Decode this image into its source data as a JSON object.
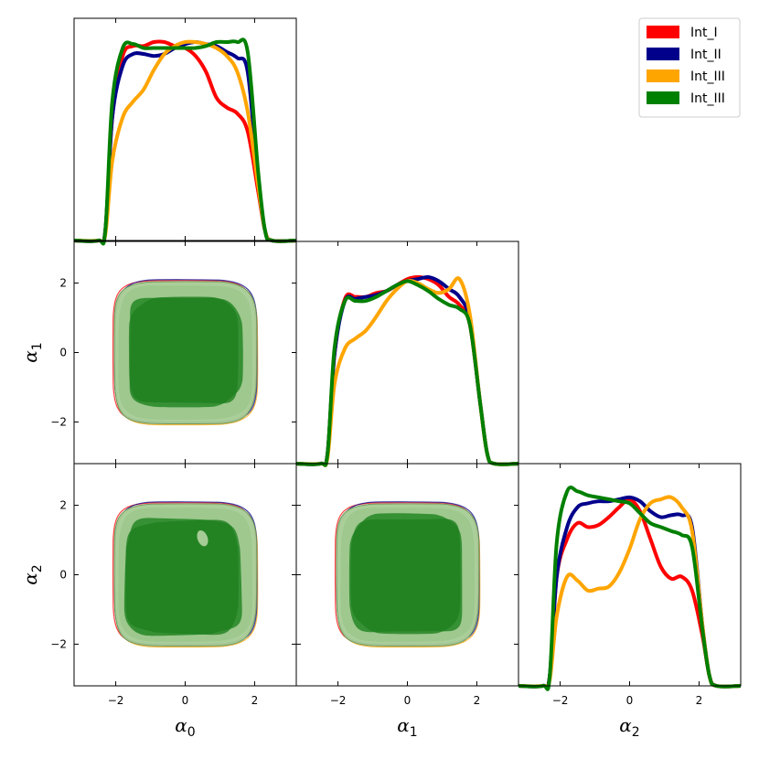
{
  "chart_data": {
    "type": "corner",
    "parameters": [
      {
        "symbol": "α",
        "subscript": "0"
      },
      {
        "symbol": "α",
        "subscript": "1"
      },
      {
        "symbol": "α",
        "subscript": "2"
      }
    ],
    "axis_range": [
      -3.2,
      3.2
    ],
    "ticks": [
      -2,
      0,
      2
    ],
    "tick_labels": [
      "−2",
      "0",
      "2"
    ],
    "legend_position": "top-right",
    "series": [
      {
        "name": "Int_I",
        "color": "#ff0000"
      },
      {
        "name": "Int_II",
        "color": "#00008b"
      },
      {
        "name": "Int_III",
        "color": "#ffa500"
      },
      {
        "name": "Int_III",
        "color": "#008000"
      }
    ],
    "contour_colors": {
      "outer": "#a6cc96",
      "inner": "#2e8b2e"
    },
    "marginals": [
      {
        "parameter": "α0",
        "x": [
          -3.2,
          -2.5,
          -2.3,
          -2.1,
          -1.8,
          -1.5,
          -1.2,
          -0.9,
          -0.6,
          -0.3,
          0.0,
          0.3,
          0.6,
          0.9,
          1.2,
          1.5,
          1.8,
          2.1,
          2.3,
          2.5,
          3.2
        ],
        "series": [
          {
            "name": "Int_I",
            "values": [
              0.0,
              0.0,
              0.05,
              0.62,
              0.93,
              0.98,
              0.98,
              1.0,
              1.0,
              0.98,
              0.97,
              0.93,
              0.85,
              0.72,
              0.67,
              0.64,
              0.55,
              0.25,
              0.05,
              0.0,
              0.0
            ]
          },
          {
            "name": "Int_II",
            "values": [
              0.0,
              0.0,
              0.05,
              0.62,
              0.88,
              0.94,
              0.94,
              0.93,
              0.94,
              0.97,
              0.99,
              1.0,
              0.99,
              0.98,
              0.95,
              0.92,
              0.85,
              0.3,
              0.05,
              0.0,
              0.0
            ]
          },
          {
            "name": "Int_III",
            "values": [
              0.0,
              0.0,
              0.03,
              0.4,
              0.62,
              0.7,
              0.76,
              0.86,
              0.94,
              0.98,
              1.0,
              1.0,
              0.99,
              0.97,
              0.93,
              0.85,
              0.65,
              0.28,
              0.05,
              0.0,
              0.0
            ]
          },
          {
            "name": "Int_III",
            "values": [
              0.0,
              0.0,
              0.05,
              0.7,
              0.97,
              0.99,
              0.97,
              0.97,
              0.97,
              0.97,
              0.97,
              0.97,
              0.98,
              1.0,
              1.0,
              1.0,
              0.95,
              0.35,
              0.05,
              0.0,
              0.0
            ]
          }
        ]
      },
      {
        "parameter": "α1",
        "x": [
          -3.2,
          -2.5,
          -2.3,
          -2.1,
          -1.8,
          -1.5,
          -1.2,
          -0.9,
          -0.6,
          -0.3,
          0.0,
          0.3,
          0.6,
          0.9,
          1.2,
          1.5,
          1.8,
          2.1,
          2.3,
          2.5,
          3.2
        ],
        "series": [
          {
            "name": "Int_I",
            "values": [
              0.0,
              0.0,
              0.05,
              0.55,
              0.83,
              0.84,
              0.84,
              0.86,
              0.87,
              0.9,
              0.93,
              0.94,
              0.93,
              0.9,
              0.84,
              0.8,
              0.7,
              0.3,
              0.05,
              0.0,
              0.0
            ]
          },
          {
            "name": "Int_II",
            "values": [
              0.0,
              0.0,
              0.05,
              0.55,
              0.82,
              0.83,
              0.84,
              0.85,
              0.87,
              0.9,
              0.92,
              0.93,
              0.94,
              0.92,
              0.88,
              0.84,
              0.72,
              0.3,
              0.05,
              0.0,
              0.0
            ]
          },
          {
            "name": "Int_III",
            "values": [
              0.0,
              0.0,
              0.03,
              0.4,
              0.58,
              0.63,
              0.67,
              0.74,
              0.82,
              0.88,
              0.92,
              0.91,
              0.88,
              0.86,
              0.88,
              0.93,
              0.75,
              0.3,
              0.05,
              0.0,
              0.0
            ]
          },
          {
            "name": "Int_III",
            "values": [
              0.0,
              0.0,
              0.05,
              0.58,
              0.82,
              0.82,
              0.82,
              0.84,
              0.87,
              0.9,
              0.92,
              0.9,
              0.87,
              0.83,
              0.8,
              0.78,
              0.7,
              0.3,
              0.05,
              0.0,
              0.0
            ]
          }
        ]
      },
      {
        "parameter": "α2",
        "x": [
          -3.2,
          -2.5,
          -2.3,
          -2.1,
          -1.8,
          -1.5,
          -1.2,
          -0.9,
          -0.6,
          -0.3,
          0.0,
          0.3,
          0.6,
          0.9,
          1.2,
          1.5,
          1.8,
          2.1,
          2.3,
          2.5,
          3.2
        ],
        "series": [
          {
            "name": "Int_I",
            "values": [
              0.0,
              0.0,
              0.05,
              0.55,
              0.74,
              0.82,
              0.8,
              0.81,
              0.85,
              0.9,
              0.94,
              0.88,
              0.74,
              0.6,
              0.54,
              0.55,
              0.48,
              0.25,
              0.05,
              0.0,
              0.0
            ]
          },
          {
            "name": "Int_II",
            "values": [
              0.0,
              0.0,
              0.05,
              0.55,
              0.8,
              0.9,
              0.92,
              0.93,
              0.93,
              0.94,
              0.95,
              0.93,
              0.88,
              0.85,
              0.86,
              0.86,
              0.8,
              0.3,
              0.05,
              0.0,
              0.0
            ]
          },
          {
            "name": "Int_III",
            "values": [
              0.0,
              0.0,
              0.03,
              0.35,
              0.55,
              0.53,
              0.48,
              0.49,
              0.5,
              0.57,
              0.69,
              0.84,
              0.92,
              0.94,
              0.95,
              0.9,
              0.78,
              0.3,
              0.05,
              0.0,
              0.0
            ]
          },
          {
            "name": "Int_III",
            "values": [
              0.0,
              0.0,
              0.05,
              0.72,
              0.98,
              0.98,
              0.96,
              0.95,
              0.94,
              0.93,
              0.92,
              0.87,
              0.82,
              0.8,
              0.78,
              0.76,
              0.7,
              0.28,
              0.05,
              0.0,
              0.0
            ]
          }
        ]
      }
    ],
    "joint_2d": [
      {
        "x_param": "α0",
        "y_param": "α1",
        "region_95": {
          "x_range": [
            -2.05,
            2.05
          ],
          "y_range": [
            -2.05,
            2.05
          ]
        },
        "region_68": {
          "x_range": [
            -1.65,
            1.6
          ],
          "y_range": [
            -1.55,
            1.6
          ]
        }
      },
      {
        "x_param": "α0",
        "y_param": "α2",
        "region_95": {
          "x_range": [
            -2.05,
            2.05
          ],
          "y_range": [
            -2.05,
            2.05
          ]
        },
        "region_68": {
          "x_range": [
            -1.75,
            1.6
          ],
          "y_range": [
            -1.75,
            1.6
          ]
        },
        "hole": {
          "x": 0.5,
          "y": 1.05
        }
      },
      {
        "x_param": "α1",
        "y_param": "α2",
        "region_95": {
          "x_range": [
            -2.05,
            2.05
          ],
          "y_range": [
            -2.05,
            2.05
          ]
        },
        "region_68": {
          "x_range": [
            -1.65,
            1.6
          ],
          "y_range": [
            -1.7,
            1.7
          ]
        }
      }
    ]
  }
}
